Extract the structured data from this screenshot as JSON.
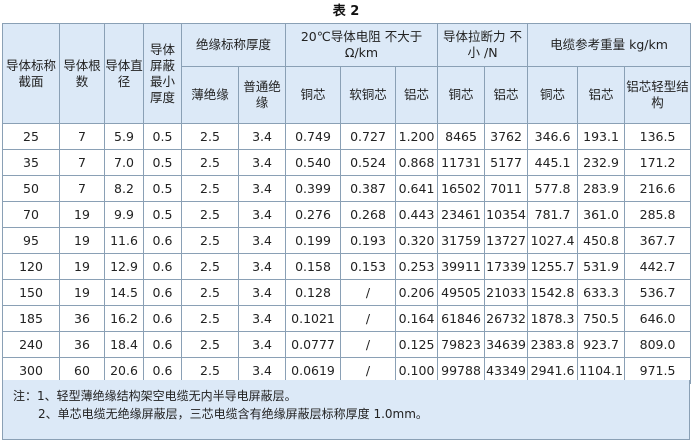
{
  "title": "表 2",
  "headers": {
    "section": "导体标称截面",
    "count": "导体根数",
    "diameter": "导体直径",
    "shield": "导体屏蔽最小厚度",
    "insulation": "绝缘标称厚度",
    "ins_thin": "薄绝缘",
    "ins_normal": "普通绝缘",
    "resistance": "20℃导体电阻 不大于 Ω/km",
    "res_cu": "铜芯",
    "res_softcu": "软铜芯",
    "res_al": "铝芯",
    "tensile": "导体拉断力 不小 /N",
    "ten_cu": "铜芯",
    "ten_al": "铝芯",
    "weight": "电缆参考重量 kg/km",
    "w_cu": "铜芯",
    "w_al": "铝芯",
    "w_al_light": "铝芯轻型结构"
  },
  "rows": [
    [
      "25",
      "7",
      "5.9",
      "0.5",
      "2.5",
      "3.4",
      "0.749",
      "0.727",
      "1.200",
      "8465",
      "3762",
      "346.6",
      "193.1",
      "136.5"
    ],
    [
      "35",
      "7",
      "7.0",
      "0.5",
      "2.5",
      "3.4",
      "0.540",
      "0.524",
      "0.868",
      "11731",
      "5177",
      "445.1",
      "232.9",
      "171.2"
    ],
    [
      "50",
      "7",
      "8.2",
      "0.5",
      "2.5",
      "3.4",
      "0.399",
      "0.387",
      "0.641",
      "16502",
      "7011",
      "577.8",
      "283.9",
      "216.6"
    ],
    [
      "70",
      "19",
      "9.9",
      "0.5",
      "2.5",
      "3.4",
      "0.276",
      "0.268",
      "0.443",
      "23461",
      "10354",
      "781.7",
      "361.0",
      "285.8"
    ],
    [
      "95",
      "19",
      "11.6",
      "0.6",
      "2.5",
      "3.4",
      "0.199",
      "0.193",
      "0.320",
      "31759",
      "13727",
      "1027.4",
      "450.8",
      "367.7"
    ],
    [
      "120",
      "19",
      "12.9",
      "0.6",
      "2.5",
      "3.4",
      "0.158",
      "0.153",
      "0.253",
      "39911",
      "17339",
      "1255.7",
      "531.9",
      "442.7"
    ],
    [
      "150",
      "19",
      "14.5",
      "0.6",
      "2.5",
      "3.4",
      "0.128",
      "/",
      "0.206",
      "49505",
      "21033",
      "1542.8",
      "633.3",
      "536.7"
    ],
    [
      "185",
      "36",
      "16.2",
      "0.6",
      "2.5",
      "3.4",
      "0.1021",
      "/",
      "0.164",
      "61846",
      "26732",
      "1878.3",
      "750.5",
      "646.0"
    ],
    [
      "240",
      "36",
      "18.4",
      "0.6",
      "2.5",
      "3.4",
      "0.0777",
      "/",
      "0.125",
      "79823",
      "34639",
      "2383.8",
      "923.7",
      "809.0"
    ],
    [
      "300",
      "60",
      "20.6",
      "0.6",
      "2.5",
      "3.4",
      "0.0619",
      "/",
      "0.100",
      "99788",
      "43349",
      "2941.6",
      "1104.1",
      "971.5"
    ]
  ],
  "notes": {
    "line1": "注：1、轻型薄绝缘结构架空电缆无内半导电屏蔽层。",
    "line2": "2、单芯电缆无绝缘屏蔽层，三芯电缆含有绝缘屏蔽层标称厚度 1.0mm。"
  }
}
